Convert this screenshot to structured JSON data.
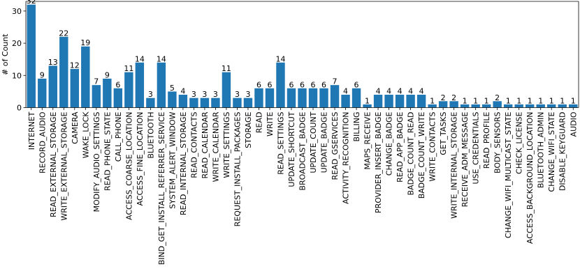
{
  "chart_data": {
    "type": "bar",
    "ylabel": "# of Count",
    "xlabel": "",
    "title": "",
    "ylim": [
      0,
      33
    ],
    "yticks": [
      0,
      10,
      20,
      30
    ],
    "grid": false,
    "bar_color": "#1f77b4",
    "categories": [
      "INTERNET",
      "RECORD_AUDIO",
      "READ_EXTERNAL_STORAGE",
      "WRITE_EXTERNAL_STORAGE",
      "CAMERA",
      "WAKE_LOCK",
      "MODIFY_AUDIO_SETTINGS",
      "READ_PHONE_STATE",
      "CALL_PHONE",
      "ACCESS_COARSE_LOCATION",
      "ACCESS_FINE_LOCATION",
      "BLUETOOTH",
      "BIND_GET_INSTALL_REFERRER_SERVICE",
      "SYSTEM_ALERT_WINDOW",
      "READ_INTERNAL_STORAGE",
      "READ_CONTACTS",
      "READ_CALENDAR",
      "WRITE_CALENDAR",
      "WRITE_SETTINGS",
      "REQUEST_INSTALL_PACKAGES",
      "STORAGE",
      "READ",
      "WRITE",
      "READ_SETTINGS",
      "UPDATE_SHORTCUT",
      "BROADCAST_BADGE",
      "UPDATE_COUNT",
      "UPDATE_BADGE",
      "READ_GSERVICES",
      "ACTIVITY_RECOGNITION",
      "BILLING",
      "MAPS_RECEIVE",
      "PROVIDER_INSERT_BADGE",
      "CHANGE_BADGE",
      "READ_APP_BADGE",
      "BADGE_COUNT_READ",
      "BADGE_COUNT_WRITE",
      "WRITE_CONTACTS",
      "GET_TASKS",
      "WRITE_INTERNAL_STORAGE",
      "RECEIVE_ADM_MESSAGE",
      "USE_CREDENTIALS",
      "READ_PROFILE",
      "BODY_SENSORS",
      "CHANGE_WIFI_MULTICAST_STATE",
      "CHECK_LICENSE",
      "ACCESS_BACKGROUND_LOCATION",
      "BLUETOOTH_ADMIN",
      "CHANGE_WIFI_STATE",
      "DISABLE_KEYGUARD",
      "AUDIO"
    ],
    "values": [
      32,
      9,
      13,
      22,
      12,
      19,
      7,
      9,
      6,
      11,
      14,
      3,
      14,
      5,
      4,
      3,
      3,
      3,
      11,
      3,
      3,
      6,
      6,
      14,
      6,
      6,
      6,
      6,
      7,
      4,
      6,
      1,
      4,
      4,
      4,
      4,
      4,
      1,
      2,
      2,
      1,
      1,
      1,
      2,
      1,
      1,
      1,
      1,
      1,
      1,
      1
    ]
  }
}
